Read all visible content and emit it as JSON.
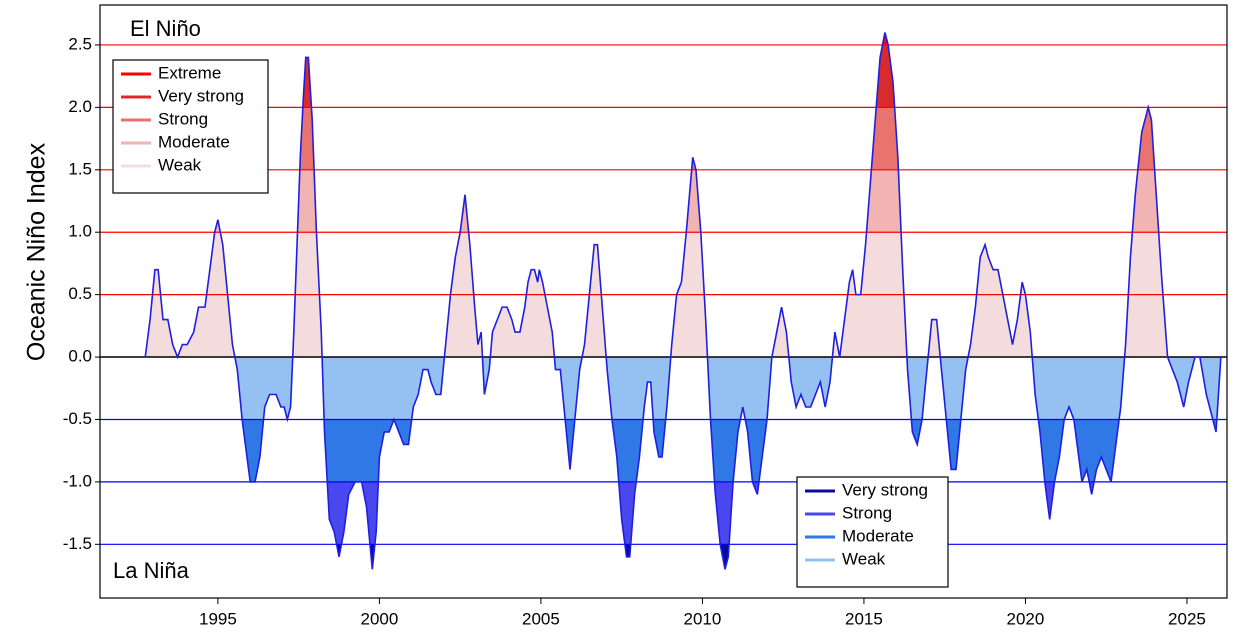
{
  "chart_data": {
    "type": "area",
    "y_label": "Oceanic Niño Index",
    "annotations": [
      "El Niño",
      "La Niña"
    ],
    "xlim": [
      1991.35,
      2026.24
    ],
    "ylim": [
      -1.93,
      2.82
    ],
    "xticks": [
      1995,
      2000,
      2005,
      2010,
      2015,
      2020,
      2025
    ],
    "yticks": [
      2.5,
      {
        "value": 2,
        "label": "2.0"
      },
      1.5,
      {
        "value": 1,
        "label": "1.0"
      },
      0.5,
      {
        "value": 0,
        "label": "0.0"
      },
      -0.5,
      {
        "value": -1,
        "label": "-1.0"
      },
      -1.5
    ],
    "grid": true,
    "x": [
      1992.75,
      1992.9,
      1993.05,
      1993.15,
      1993.3,
      1993.45,
      1993.6,
      1993.75,
      1993.9,
      1994.05,
      1994.25,
      1994.4,
      1994.6,
      1994.75,
      1994.9,
      1995.0,
      1995.15,
      1995.3,
      1995.45,
      1995.6,
      1995.75,
      1995.9,
      1996.0,
      1996.15,
      1996.3,
      1996.45,
      1996.6,
      1996.8,
      1996.95,
      1997.05,
      1997.15,
      1997.25,
      1997.35,
      1997.45,
      1997.55,
      1997.65,
      1997.72,
      1997.8,
      1997.92,
      1998.05,
      1998.2,
      1998.3,
      1998.45,
      1998.6,
      1998.75,
      1998.9,
      1999.05,
      1999.25,
      1999.45,
      1999.6,
      1999.78,
      1999.9,
      2000.0,
      2000.15,
      2000.3,
      2000.45,
      2000.6,
      2000.75,
      2000.9,
      2001.05,
      2001.2,
      2001.35,
      2001.5,
      2001.6,
      2001.75,
      2001.9,
      2002.05,
      2002.2,
      2002.35,
      2002.5,
      2002.65,
      2002.8,
      2002.95,
      2003.05,
      2003.15,
      2003.25,
      2003.4,
      2003.5,
      2003.65,
      2003.8,
      2003.95,
      2004.1,
      2004.2,
      2004.35,
      2004.5,
      2004.6,
      2004.7,
      2004.8,
      2004.9,
      2004.95,
      2005.05,
      2005.2,
      2005.35,
      2005.45,
      2005.6,
      2005.75,
      2005.9,
      2006.05,
      2006.2,
      2006.35,
      2006.5,
      2006.65,
      2006.75,
      2006.9,
      2007.05,
      2007.2,
      2007.35,
      2007.5,
      2007.65,
      2007.75,
      2007.9,
      2008.05,
      2008.2,
      2008.3,
      2008.4,
      2008.5,
      2008.65,
      2008.75,
      2008.9,
      2009.05,
      2009.2,
      2009.35,
      2009.5,
      2009.7,
      2009.8,
      2009.95,
      2010.1,
      2010.25,
      2010.4,
      2010.55,
      2010.7,
      2010.8,
      2010.95,
      2011.1,
      2011.25,
      2011.4,
      2011.55,
      2011.7,
      2011.85,
      2012.0,
      2012.15,
      2012.3,
      2012.45,
      2012.6,
      2012.75,
      2012.9,
      2013.05,
      2013.2,
      2013.35,
      2013.5,
      2013.65,
      2013.8,
      2013.95,
      2014.1,
      2014.25,
      2014.4,
      2014.55,
      2014.65,
      2014.75,
      2014.9,
      2015.05,
      2015.2,
      2015.35,
      2015.5,
      2015.65,
      2015.75,
      2015.9,
      2016.05,
      2016.2,
      2016.35,
      2016.5,
      2016.65,
      2016.8,
      2016.95,
      2017.1,
      2017.25,
      2017.4,
      2017.55,
      2017.7,
      2017.85,
      2018.0,
      2018.15,
      2018.3,
      2018.45,
      2018.6,
      2018.75,
      2018.85,
      2019.0,
      2019.15,
      2019.3,
      2019.45,
      2019.6,
      2019.75,
      2019.9,
      2020.0,
      2020.15,
      2020.3,
      2020.45,
      2020.6,
      2020.75,
      2020.9,
      2021.05,
      2021.2,
      2021.35,
      2021.5,
      2021.65,
      2021.75,
      2021.9,
      2022.05,
      2022.2,
      2022.35,
      2022.5,
      2022.65,
      2022.8,
      2022.95,
      2023.1,
      2023.25,
      2023.4,
      2023.6,
      2023.8,
      2023.9,
      2024.05,
      2024.2,
      2024.4,
      2024.55,
      2024.7,
      2024.9,
      2025.05,
      2025.25,
      2025.4,
      2025.6,
      2025.8,
      2025.9,
      2026.05
    ],
    "series": [
      {
        "color": "#1f1fe0",
        "values": [
          0,
          0.3,
          0.7,
          0.7,
          0.3,
          0.3,
          0.1,
          0,
          0.1,
          0.1,
          0.2,
          0.4,
          0.4,
          0.7,
          1.0,
          1.1,
          0.9,
          0.5,
          0.1,
          -0.1,
          -0.5,
          -0.8,
          -1.0,
          -1.0,
          -0.8,
          -0.4,
          -0.3,
          -0.3,
          -0.4,
          -0.4,
          -0.5,
          -0.4,
          0.2,
          0.9,
          1.6,
          2.1,
          2.4,
          2.4,
          1.9,
          1.0,
          0.2,
          -0.6,
          -1.3,
          -1.4,
          -1.6,
          -1.4,
          -1.1,
          -1.0,
          -1.0,
          -1.2,
          -1.7,
          -1.4,
          -0.8,
          -0.6,
          -0.6,
          -0.5,
          -0.6,
          -0.7,
          -0.7,
          -0.4,
          -0.3,
          -0.1,
          -0.1,
          -0.2,
          -0.3,
          -0.3,
          0.1,
          0.5,
          0.8,
          1.0,
          1.3,
          0.9,
          0.4,
          0.1,
          0.2,
          -0.3,
          -0.1,
          0.2,
          0.3,
          0.4,
          0.4,
          0.3,
          0.2,
          0.2,
          0.4,
          0.6,
          0.7,
          0.7,
          0.6,
          0.7,
          0.6,
          0.4,
          0.2,
          -0.1,
          -0.1,
          -0.5,
          -0.9,
          -0.5,
          -0.1,
          0.1,
          0.5,
          0.9,
          0.9,
          0.4,
          -0.1,
          -0.5,
          -0.8,
          -1.3,
          -1.6,
          -1.6,
          -1.1,
          -0.8,
          -0.4,
          -0.2,
          -0.2,
          -0.6,
          -0.8,
          -0.8,
          -0.4,
          0.1,
          0.5,
          0.6,
          1.0,
          1.6,
          1.5,
          1.0,
          0.3,
          -0.5,
          -1.1,
          -1.5,
          -1.7,
          -1.6,
          -1.0,
          -0.6,
          -0.4,
          -0.6,
          -1.0,
          -1.1,
          -0.8,
          -0.5,
          0.0,
          0.2,
          0.4,
          0.2,
          -0.2,
          -0.4,
          -0.3,
          -0.4,
          -0.4,
          -0.3,
          -0.2,
          -0.4,
          -0.2,
          0.2,
          0.0,
          0.3,
          0.6,
          0.7,
          0.5,
          0.5,
          0.9,
          1.4,
          1.9,
          2.4,
          2.6,
          2.5,
          2.2,
          1.6,
          0.7,
          -0.1,
          -0.6,
          -0.7,
          -0.5,
          -0.1,
          0.3,
          0.3,
          -0.1,
          -0.5,
          -0.9,
          -0.9,
          -0.5,
          -0.1,
          0.1,
          0.4,
          0.8,
          0.9,
          0.8,
          0.7,
          0.7,
          0.5,
          0.3,
          0.1,
          0.3,
          0.6,
          0.5,
          0.2,
          -0.3,
          -0.6,
          -1.0,
          -1.3,
          -1.0,
          -0.8,
          -0.5,
          -0.4,
          -0.5,
          -0.8,
          -1.0,
          -0.9,
          -1.1,
          -0.9,
          -0.8,
          -0.9,
          -1.0,
          -0.7,
          -0.4,
          0.1,
          0.8,
          1.3,
          1.8,
          2.0,
          1.9,
          1.3,
          0.7,
          0.0,
          -0.1,
          -0.2,
          -0.4,
          -0.2,
          0.0,
          0.0,
          -0.3,
          -0.5,
          -0.6,
          0.0
        ]
      }
    ],
    "el_nino_legend": [
      {
        "name": "Extreme",
        "color": "#ff0000",
        "threshold": 2.5
      },
      {
        "name": "Very strong",
        "color": "#d92b2b",
        "threshold": 2.0
      },
      {
        "name": "Strong",
        "color": "#e8736f",
        "threshold": 1.5
      },
      {
        "name": "Moderate",
        "color": "#f2b3b3",
        "threshold": 1.0
      },
      {
        "name": "Weak",
        "color": "#f5dcdc",
        "threshold": 0
      }
    ],
    "la_nina_legend": [
      {
        "name": "Very strong",
        "color": "#0a0a9c",
        "threshold": -1.5
      },
      {
        "name": "Strong",
        "color": "#4a47ee",
        "threshold": -1.0
      },
      {
        "name": "Moderate",
        "color": "#2f78e6",
        "threshold": -0.5
      },
      {
        "name": "Weak",
        "color": "#94c0f2",
        "threshold": 0
      }
    ]
  }
}
